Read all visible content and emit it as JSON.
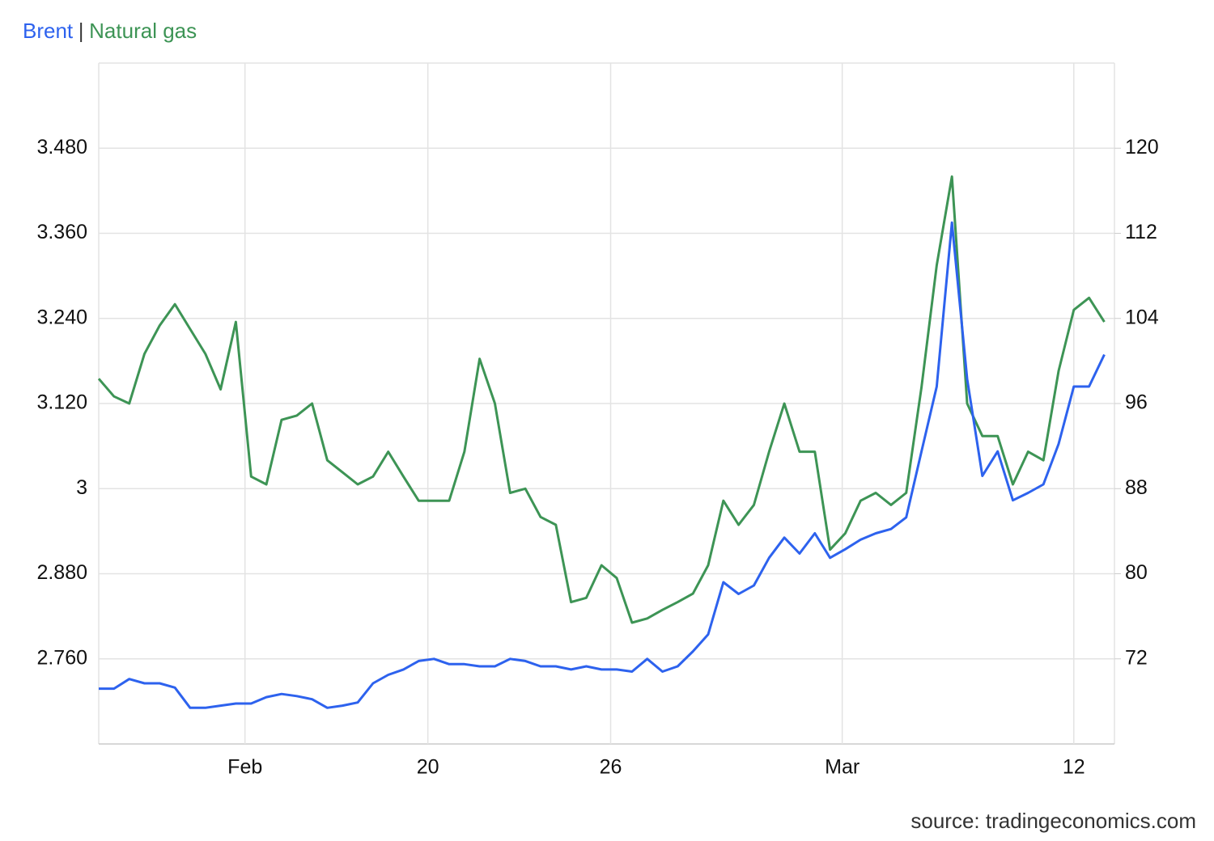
{
  "chart_data": {
    "type": "line",
    "source": "source: tradingeconomics.com",
    "x": [
      0,
      1.5,
      3,
      4.5,
      6,
      7.5,
      9,
      10.5,
      12,
      13.5,
      15,
      16.5,
      18,
      19.5,
      21,
      22.5,
      24,
      25.5,
      27,
      28.5,
      30,
      31.5,
      33,
      34.5,
      36,
      37.5,
      39,
      40.5,
      42,
      43.5,
      45,
      46.5,
      48,
      49.5,
      51,
      52.5,
      54,
      55.5,
      57,
      58.5,
      60,
      61.5,
      63,
      64.5,
      66,
      67.5,
      69,
      70.5,
      72,
      73.5,
      75,
      76.5,
      78,
      79.5,
      81,
      82.5,
      84,
      85.5,
      87,
      88.5,
      90,
      91.5,
      93,
      94.5,
      96,
      97.5,
      99
    ],
    "xlim": [
      0,
      100
    ],
    "xticks": [
      {
        "value": 14.4,
        "label": "Feb"
      },
      {
        "value": 32.4,
        "label": "20"
      },
      {
        "value": 50.4,
        "label": "26"
      },
      {
        "value": 73.2,
        "label": "Mar"
      },
      {
        "value": 96.0,
        "label": "12"
      }
    ],
    "ylim": [
      2.64,
      3.6
    ],
    "yticks": [
      {
        "value": 2.76,
        "label": "2.760"
      },
      {
        "value": 2.88,
        "label": "2.880"
      },
      3,
      {
        "value": 3.12,
        "label": "3.120"
      },
      {
        "value": 3.24,
        "label": "3.240"
      },
      {
        "value": 3.36,
        "label": "3.360"
      },
      {
        "value": 3.48,
        "label": "3.480"
      }
    ],
    "y2lim": [
      64,
      128
    ],
    "y2ticks": [
      72,
      80,
      88,
      96,
      104,
      112,
      120
    ],
    "grid": true,
    "series": [
      {
        "name": "Brent",
        "color": "#2d62ee",
        "axis": "y2",
        "values": [
          69.2,
          69.2,
          70.1,
          69.7,
          69.7,
          69.3,
          67.4,
          67.4,
          67.6,
          67.8,
          67.8,
          68.4,
          68.7,
          68.5,
          68.2,
          67.4,
          67.6,
          67.9,
          69.7,
          70.5,
          71.0,
          71.8,
          72.0,
          71.5,
          71.5,
          71.3,
          71.3,
          72.0,
          71.8,
          71.3,
          71.3,
          71.0,
          71.3,
          71.0,
          71.0,
          70.8,
          72.0,
          70.8,
          71.3,
          72.7,
          74.3,
          79.2,
          78.1,
          78.9,
          81.5,
          83.4,
          81.9,
          83.8,
          81.5,
          82.3,
          83.2,
          83.8,
          84.2,
          85.3,
          91.5,
          97.6,
          113.0,
          98.3,
          89.2,
          91.5,
          86.9,
          87.6,
          88.4,
          92.2,
          97.6,
          97.6,
          100.6
        ]
      },
      {
        "name": "Natural gas",
        "color": "#3d9455",
        "values": [
          3.155,
          3.13,
          3.12,
          3.19,
          3.23,
          3.26,
          3.225,
          3.19,
          3.14,
          3.235,
          3.017,
          3.006,
          3.097,
          3.103,
          3.12,
          3.04,
          3.023,
          3.006,
          3.017,
          3.052,
          3.017,
          2.983,
          2.983,
          2.983,
          3.052,
          3.183,
          3.12,
          2.994,
          3.0,
          2.96,
          2.949,
          2.84,
          2.846,
          2.892,
          2.874,
          2.811,
          2.817,
          2.829,
          2.84,
          2.852,
          2.892,
          2.983,
          2.949,
          2.977,
          3.052,
          3.12,
          3.052,
          3.052,
          2.914,
          2.937,
          2.983,
          2.994,
          2.977,
          2.994,
          3.143,
          3.315,
          3.44,
          3.12,
          3.074,
          3.074,
          3.006,
          3.052,
          3.04,
          3.166,
          3.252,
          3.269,
          3.235
        ]
      }
    ]
  }
}
